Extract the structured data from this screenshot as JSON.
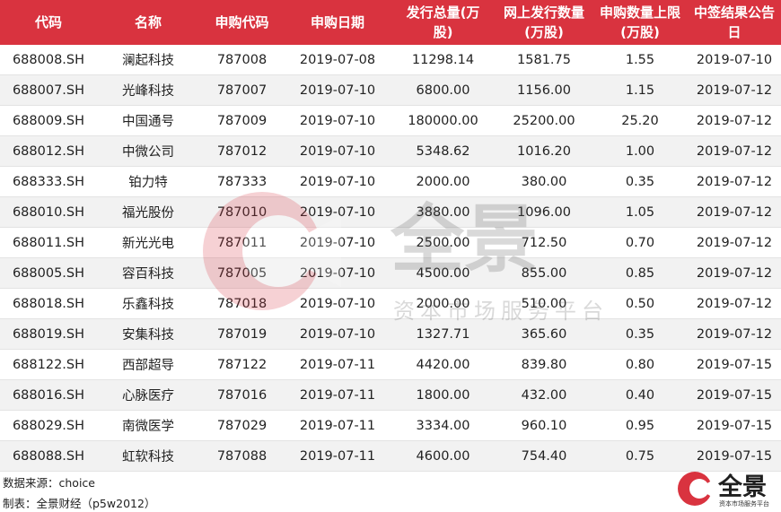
{
  "table": {
    "headers": [
      {
        "line1": "代码",
        "line2": ""
      },
      {
        "line1": "名称",
        "line2": ""
      },
      {
        "line1": "申购代码",
        "line2": ""
      },
      {
        "line1": "申购日期",
        "line2": ""
      },
      {
        "line1": "发行总量(万",
        "line2": "股)"
      },
      {
        "line1": "网上发行数量",
        "line2": "(万股)"
      },
      {
        "line1": "申购数量上限",
        "line2": "(万股)"
      },
      {
        "line1": "中签结果公告",
        "line2": "日"
      }
    ],
    "rows": [
      [
        "688008.SH",
        "澜起科技",
        "787008",
        "2019-07-08",
        "11298.14",
        "1581.75",
        "1.55",
        "2019-07-10"
      ],
      [
        "688007.SH",
        "光峰科技",
        "787007",
        "2019-07-10",
        "6800.00",
        "1156.00",
        "1.15",
        "2019-07-12"
      ],
      [
        "688009.SH",
        "中国通号",
        "787009",
        "2019-07-10",
        "180000.00",
        "25200.00",
        "25.20",
        "2019-07-12"
      ],
      [
        "688012.SH",
        "中微公司",
        "787012",
        "2019-07-10",
        "5348.62",
        "1016.20",
        "1.00",
        "2019-07-12"
      ],
      [
        "688333.SH",
        "铂力特",
        "787333",
        "2019-07-10",
        "2000.00",
        "380.00",
        "0.35",
        "2019-07-12"
      ],
      [
        "688010.SH",
        "福光股份",
        "787010",
        "2019-07-10",
        "3880.00",
        "1096.00",
        "1.05",
        "2019-07-12"
      ],
      [
        "688011.SH",
        "新光光电",
        "787011",
        "2019-07-10",
        "2500.00",
        "712.50",
        "0.70",
        "2019-07-12"
      ],
      [
        "688005.SH",
        "容百科技",
        "787005",
        "2019-07-10",
        "4500.00",
        "855.00",
        "0.85",
        "2019-07-12"
      ],
      [
        "688018.SH",
        "乐鑫科技",
        "787018",
        "2019-07-10",
        "2000.00",
        "510.00",
        "0.50",
        "2019-07-12"
      ],
      [
        "688019.SH",
        "安集科技",
        "787019",
        "2019-07-10",
        "1327.71",
        "365.60",
        "0.35",
        "2019-07-12"
      ],
      [
        "688122.SH",
        "西部超导",
        "787122",
        "2019-07-11",
        "4420.00",
        "839.80",
        "0.80",
        "2019-07-15"
      ],
      [
        "688016.SH",
        "心脉医疗",
        "787016",
        "2019-07-11",
        "1800.00",
        "432.00",
        "0.40",
        "2019-07-15"
      ],
      [
        "688029.SH",
        "南微医学",
        "787029",
        "2019-07-11",
        "3334.00",
        "960.10",
        "0.95",
        "2019-07-15"
      ],
      [
        "688088.SH",
        "虹软科技",
        "787088",
        "2019-07-11",
        "4600.00",
        "754.40",
        "0.75",
        "2019-07-15"
      ]
    ]
  },
  "footer": {
    "source": "数据来源：choice",
    "maker": "制表：全景财经（p5w2012）"
  },
  "watermark": {
    "brand": "全景",
    "tagline": "资本市场服务平台"
  },
  "logo": {
    "brand": "全景",
    "tagline": "资本市场服务平台"
  },
  "colors": {
    "header_bg": "#d9333f",
    "header_text": "#ffffff",
    "stripe": "#f2f2f2",
    "brand_red": "#d9333f"
  }
}
